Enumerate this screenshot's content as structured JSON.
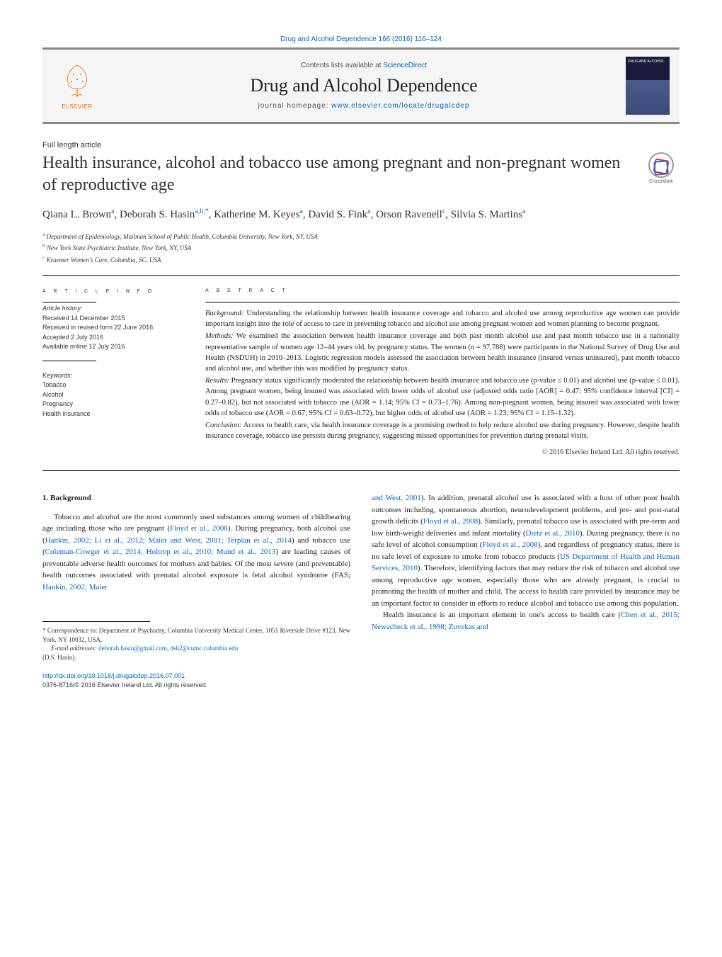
{
  "header": {
    "citation": "Drug and Alcohol Dependence 166 (2016) 116–124",
    "contents_prefix": "Contents lists available at ",
    "contents_link": "ScienceDirect",
    "journal_name": "Drug and Alcohol Dependence",
    "homepage_prefix": "journal homepage: ",
    "homepage_link": "www.elsevier.com/locate/drugalcdep",
    "elsevier_label": "ELSEVIER",
    "cover_text": "DRUG AND ALCOHOL",
    "crossmark_label": "CrossMark"
  },
  "article": {
    "type": "Full length article",
    "title": "Health insurance, alcohol and tobacco use among pregnant and non-pregnant women of reproductive age",
    "authors_html": "Qiana L. Brown<sup>a</sup>, Deborah S. Hasin<sup>a,b,*</sup>, Katherine M. Keyes<sup>a</sup>, David S. Fink<sup>a</sup>, Orson Ravenell<sup>c</sup>, Silvia S. Martins<sup>a</sup>",
    "affiliations": [
      {
        "sup": "a",
        "text": "Department of Epidemiology, Mailman School of Public Health, Columbia University, New York, NY, USA"
      },
      {
        "sup": "b",
        "text": "New York State Psychiatric Institute, New York, NY, USA"
      },
      {
        "sup": "c",
        "text": "Kraemer Women's Care, Columbia, SC, USA"
      }
    ]
  },
  "info": {
    "heading": "a r t i c l e   i n f o",
    "history_label": "Article history:",
    "received": "Received 14 December 2015",
    "revised": "Received in revised form 22 June 2016",
    "accepted": "Accepted 2 July 2016",
    "online": "Available online 12 July 2016",
    "keywords_label": "Keywords:",
    "keywords": [
      "Tobacco",
      "Alcohol",
      "Pregnancy",
      "Health insurance"
    ]
  },
  "abstract": {
    "heading": "a b s t r a c t",
    "background_label": "Background:",
    "background": "Understanding the relationship between health insurance coverage and tobacco and alcohol use among reproductive age women can provide important insight into the role of access to care in preventing tobacco and alcohol use among pregnant women and women planning to become pregnant.",
    "methods_label": "Methods:",
    "methods": "We examined the association between health insurance coverage and both past month alcohol use and past month tobacco use in a nationally representative sample of women age 12–44 years old, by pregnancy status. The women (n = 97,788) were participants in the National Survey of Drug Use and Health (NSDUH) in 2010–2013. Logistic regression models assessed the association between health insurance (insured versus uninsured), past month tobacco and alcohol use, and whether this was modified by pregnancy status.",
    "results_label": "Results:",
    "results": "Pregnancy status significantly moderated the relationship between health insurance and tobacco use (p-value ≤ 0.01) and alcohol use (p-value ≤ 0.01). Among pregnant women, being insured was associated with lower odds of alcohol use (adjusted odds ratio [AOR] = 0.47; 95% confidence interval [CI] = 0.27–0.82), but not associated with tobacco use (AOR = 1.14; 95% CI = 0.73–1.76). Among non-pregnant women, being insured was associated with lower odds of tobacco use (AOR = 0.67; 95% CI = 0.63–0.72), but higher odds of alcohol use (AOR = 1.23; 95% CI = 1.15–1.32).",
    "conclusion_label": "Conclusion:",
    "conclusion": "Access to health care, via health insurance coverage is a promising method to help reduce alcohol use during pregnancy. However, despite health insurance coverage, tobacco use persists during pregnancy, suggesting missed opportunities for prevention during prenatal visits.",
    "copyright": "© 2016 Elsevier Ireland Ltd. All rights reserved."
  },
  "body": {
    "section_number": "1.",
    "section_title": "Background",
    "left_p1_pre": "Tobacco and alcohol are the most commonly used substances among women of childbearing age including those who are pregnant (",
    "left_ref1": "Floyd et al., 2008",
    "left_p1_mid1": "). During pregnancy, both alcohol use (",
    "left_ref2": "Hankin, 2002; Li et al., 2012; Maier and West, 2001; Terplan et al., 2014",
    "left_p1_mid2": ") and tobacco use (",
    "left_ref3": "Coleman-Cowger et al., 2014; Holtrop et al., 2010; Mund et al., 2013",
    "left_p1_mid3": ") are leading causes of preventable adverse health outcomes for mothers and babies. Of the most severe (and preventable) health outcomes associated with prenatal alcohol exposure is fetal alcohol syndrome (FAS; ",
    "left_ref4": "Hankin, 2002; Maier",
    "right_ref1": "and West, 2001",
    "right_p1_a": "). In addition, prenatal alcohol use is associated with a host of other poor health outcomes including, spontaneous abortion, neurodevelopment problems, and pre- and post-natal growth deficits (",
    "right_ref2": "Floyd et al., 2008",
    "right_p1_b": "). Similarly, prenatal tobacco use is associated with pre-term and low birth-weight deliveries and infant mortality (",
    "right_ref3": "Dietz et al., 2010",
    "right_p1_c": "). During pregnancy, there is no safe level of alcohol consumption (",
    "right_ref4": "Floyd et al., 2008",
    "right_p1_d": "), and regardless of pregnancy status, there is no safe level of exposure to smoke from tobacco products (",
    "right_ref5": "US Department of Health and Human Services, 2010",
    "right_p1_e": "). Therefore, identifying factors that may reduce the risk of tobacco and alcohol use among reproductive age women, especially those who are already pregnant, is crucial to promoting the health of mother and child. The access to health care provided by insurance may be an important factor to consider in efforts to reduce alcohol and tobacco use among this population.",
    "right_p2_a": "Health insurance is an important element in one's access to health care (",
    "right_ref6": "Chen et al., 2015; Newacheck et al., 1998; Zuvekas and"
  },
  "footnotes": {
    "corr_label": "*",
    "corr_text": "Correspondence to: Department of Psychiatry, Columbia University Medical Center, 1051 Riverside Drive #123, New York, NY 10032, USA.",
    "email_label": "E-mail addresses:",
    "email1": "deborah.hasin@gmail.com",
    "email_sep": ", ",
    "email2": "dsh2@cumc.columbia.edu",
    "email_author": "(D.S. Hasin)."
  },
  "doi": {
    "url": "http://dx.doi.org/10.1016/j.drugalcdep.2016.07.001",
    "issn_line": "0376-8716/© 2016 Elsevier Ireland Ltd. All rights reserved."
  },
  "colors": {
    "link": "#0066cc",
    "elsevier_orange": "#ff6600",
    "bar": "#888888"
  }
}
